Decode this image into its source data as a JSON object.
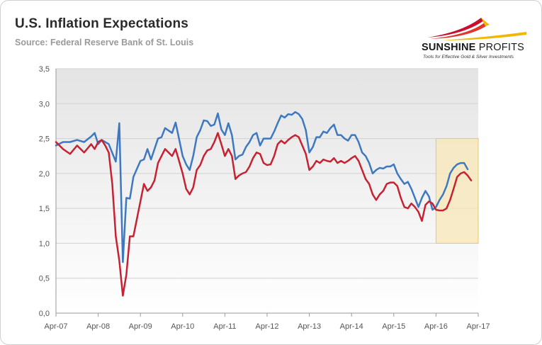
{
  "header": {
    "title": "U.S. Inflation Expectations",
    "subtitle": "Source: Federal Reserve Bank of St. Louis"
  },
  "logo": {
    "name_part1": "SUNSHINE",
    "name_part2": "PROFITS",
    "tagline": "Tools for Effective Gold & Silver Investments",
    "colors": [
      "#c8102e",
      "#f2b705"
    ]
  },
  "colors": {
    "blue_series": "#3d78c0",
    "red_series": "#c62232",
    "highlight_fill": "#f8e8b8",
    "highlight_stroke": "#f1c75a",
    "plot_background_top": "#e6e6e6",
    "plot_background_bottom": "#ffffff"
  },
  "chart_data": {
    "type": "line",
    "title": "U.S. Inflation Expectations",
    "subtitle": "Source: Federal Reserve Bank of St. Louis",
    "xlabel": "",
    "ylabel": "",
    "ylim": [
      0,
      3.5
    ],
    "yticks": [
      0,
      0.5,
      1.0,
      1.5,
      2.0,
      2.5,
      3.0,
      3.5
    ],
    "ytick_labels": [
      "0,0",
      "0,5",
      "1,0",
      "1,5",
      "2,0",
      "2,5",
      "3,0",
      "3,5"
    ],
    "xticks": [
      "Apr-07",
      "Apr-08",
      "Apr-09",
      "Apr-10",
      "Apr-11",
      "Apr-12",
      "Apr-13",
      "Apr-14",
      "Apr-15",
      "Apr-16",
      "Apr-17"
    ],
    "xrange": [
      "Apr-07",
      "Apr-17"
    ],
    "grid": true,
    "legend": "none",
    "highlight_box": {
      "x": [
        "Apr-16",
        "Apr-17"
      ],
      "y": [
        1.0,
        2.5
      ]
    },
    "series": [
      {
        "color": "#3d78c0",
        "points": [
          [
            "Apr-07",
            2.4
          ],
          [
            "Jun-07",
            2.45
          ],
          [
            "Aug-07",
            2.45
          ],
          [
            "Oct-07",
            2.48
          ],
          [
            "Dec-07",
            2.45
          ],
          [
            "Feb-08",
            2.53
          ],
          [
            "Mar-08",
            2.58
          ],
          [
            "Apr-08",
            2.42
          ],
          [
            "May-08",
            2.48
          ],
          [
            "Jul-08",
            2.42
          ],
          [
            "Sep-08",
            2.17
          ],
          [
            "Oct-08",
            2.72
          ],
          [
            "Nov-08",
            0.73
          ],
          [
            "Dec-08",
            1.65
          ],
          [
            "Jan-09",
            1.64
          ],
          [
            "Feb-09",
            1.95
          ],
          [
            "Apr-09",
            2.18
          ],
          [
            "May-09",
            2.2
          ],
          [
            "Jun-09",
            2.35
          ],
          [
            "Jul-09",
            2.2
          ],
          [
            "Aug-09",
            2.35
          ],
          [
            "Sep-09",
            2.5
          ],
          [
            "Oct-09",
            2.52
          ],
          [
            "Nov-09",
            2.65
          ],
          [
            "Jan-10",
            2.58
          ],
          [
            "Feb-10",
            2.73
          ],
          [
            "Apr-10",
            2.25
          ],
          [
            "May-10",
            2.13
          ],
          [
            "Jun-10",
            2.05
          ],
          [
            "Jul-10",
            2.25
          ],
          [
            "Aug-10",
            2.52
          ],
          [
            "Sep-10",
            2.62
          ],
          [
            "Oct-10",
            2.76
          ],
          [
            "Nov-10",
            2.75
          ],
          [
            "Dec-10",
            2.68
          ],
          [
            "Jan-11",
            2.7
          ],
          [
            "Feb-11",
            2.86
          ],
          [
            "Mar-11",
            2.63
          ],
          [
            "Apr-11",
            2.55
          ],
          [
            "May-11",
            2.72
          ],
          [
            "Jun-11",
            2.55
          ],
          [
            "Jul-11",
            2.2
          ],
          [
            "Aug-11",
            2.25
          ],
          [
            "Sep-11",
            2.27
          ],
          [
            "Oct-11",
            2.38
          ],
          [
            "Nov-11",
            2.45
          ],
          [
            "Dec-11",
            2.55
          ],
          [
            "Jan-12",
            2.58
          ],
          [
            "Feb-12",
            2.4
          ],
          [
            "Mar-12",
            2.5
          ],
          [
            "Apr-12",
            2.5
          ],
          [
            "May-12",
            2.5
          ],
          [
            "Jun-12",
            2.6
          ],
          [
            "Jul-12",
            2.72
          ],
          [
            "Aug-12",
            2.83
          ],
          [
            "Sep-12",
            2.8
          ],
          [
            "Oct-12",
            2.85
          ],
          [
            "Nov-12",
            2.84
          ],
          [
            "Dec-12",
            2.88
          ],
          [
            "Jan-13",
            2.85
          ],
          [
            "Feb-13",
            2.78
          ],
          [
            "Mar-13",
            2.62
          ],
          [
            "Apr-13",
            2.3
          ],
          [
            "May-13",
            2.38
          ],
          [
            "Jun-13",
            2.52
          ],
          [
            "Jul-13",
            2.52
          ],
          [
            "Aug-13",
            2.6
          ],
          [
            "Sep-13",
            2.58
          ],
          [
            "Oct-13",
            2.65
          ],
          [
            "Nov-13",
            2.7
          ],
          [
            "Dec-13",
            2.55
          ],
          [
            "Jan-14",
            2.55
          ],
          [
            "Feb-14",
            2.5
          ],
          [
            "Mar-14",
            2.47
          ],
          [
            "Apr-14",
            2.55
          ],
          [
            "May-14",
            2.55
          ],
          [
            "Jun-14",
            2.45
          ],
          [
            "Jul-14",
            2.3
          ],
          [
            "Aug-14",
            2.25
          ],
          [
            "Sep-14",
            2.15
          ],
          [
            "Oct-14",
            2.0
          ],
          [
            "Nov-14",
            2.05
          ],
          [
            "Dec-14",
            2.08
          ],
          [
            "Jan-15",
            2.07
          ],
          [
            "Feb-15",
            2.1
          ],
          [
            "Mar-15",
            2.1
          ],
          [
            "Apr-15",
            2.13
          ],
          [
            "May-15",
            2.0
          ],
          [
            "Jun-15",
            1.92
          ],
          [
            "Jul-15",
            1.85
          ],
          [
            "Aug-15",
            1.88
          ],
          [
            "Sep-15",
            1.78
          ],
          [
            "Oct-15",
            1.65
          ],
          [
            "Nov-15",
            1.52
          ],
          [
            "Dec-15",
            1.65
          ],
          [
            "Jan-16",
            1.75
          ],
          [
            "Feb-16",
            1.67
          ],
          [
            "Mar-16",
            1.48
          ],
          [
            "Apr-16",
            1.52
          ],
          [
            "May-16",
            1.62
          ],
          [
            "Jun-16",
            1.7
          ],
          [
            "Jul-16",
            1.82
          ],
          [
            "Aug-16",
            2.0
          ],
          [
            "Sep-16",
            2.08
          ],
          [
            "Oct-16",
            2.13
          ],
          [
            "Nov-16",
            2.15
          ],
          [
            "Dec-16",
            2.15
          ],
          [
            "Jan-17",
            2.06
          ]
        ]
      },
      {
        "color": "#c62232",
        "points": [
          [
            "Apr-07",
            2.45
          ],
          [
            "Jun-07",
            2.35
          ],
          [
            "Aug-07",
            2.28
          ],
          [
            "Oct-07",
            2.4
          ],
          [
            "Dec-07",
            2.3
          ],
          [
            "Feb-08",
            2.42
          ],
          [
            "Mar-08",
            2.35
          ],
          [
            "Apr-08",
            2.45
          ],
          [
            "May-08",
            2.48
          ],
          [
            "Jun-08",
            2.4
          ],
          [
            "Jul-08",
            2.3
          ],
          [
            "Aug-08",
            1.85
          ],
          [
            "Sep-08",
            1.1
          ],
          [
            "Oct-08",
            0.75
          ],
          [
            "Nov-08",
            0.25
          ],
          [
            "Dec-08",
            0.55
          ],
          [
            "Jan-09",
            1.1
          ],
          [
            "Feb-09",
            1.1
          ],
          [
            "Apr-09",
            1.6
          ],
          [
            "May-09",
            1.85
          ],
          [
            "Jun-09",
            1.75
          ],
          [
            "Jul-09",
            1.8
          ],
          [
            "Aug-09",
            1.9
          ],
          [
            "Sep-09",
            2.15
          ],
          [
            "Oct-09",
            2.25
          ],
          [
            "Nov-09",
            2.35
          ],
          [
            "Jan-10",
            2.25
          ],
          [
            "Feb-10",
            2.35
          ],
          [
            "Apr-10",
            2.0
          ],
          [
            "May-10",
            1.78
          ],
          [
            "Jun-10",
            1.7
          ],
          [
            "Jul-10",
            1.8
          ],
          [
            "Aug-10",
            2.05
          ],
          [
            "Sep-10",
            2.12
          ],
          [
            "Oct-10",
            2.25
          ],
          [
            "Nov-10",
            2.33
          ],
          [
            "Dec-10",
            2.35
          ],
          [
            "Jan-11",
            2.45
          ],
          [
            "Feb-11",
            2.58
          ],
          [
            "Mar-11",
            2.42
          ],
          [
            "Apr-11",
            2.25
          ],
          [
            "May-11",
            2.35
          ],
          [
            "Jun-11",
            2.25
          ],
          [
            "Jul-11",
            1.92
          ],
          [
            "Aug-11",
            1.97
          ],
          [
            "Sep-11",
            2.0
          ],
          [
            "Oct-11",
            2.02
          ],
          [
            "Nov-11",
            2.1
          ],
          [
            "Dec-11",
            2.22
          ],
          [
            "Jan-12",
            2.3
          ],
          [
            "Feb-12",
            2.28
          ],
          [
            "Mar-12",
            2.15
          ],
          [
            "Apr-12",
            2.12
          ],
          [
            "May-12",
            2.13
          ],
          [
            "Jun-12",
            2.25
          ],
          [
            "Jul-12",
            2.42
          ],
          [
            "Aug-12",
            2.47
          ],
          [
            "Sep-12",
            2.43
          ],
          [
            "Oct-12",
            2.48
          ],
          [
            "Nov-12",
            2.52
          ],
          [
            "Dec-12",
            2.55
          ],
          [
            "Jan-13",
            2.52
          ],
          [
            "Feb-13",
            2.4
          ],
          [
            "Mar-13",
            2.28
          ],
          [
            "Apr-13",
            2.05
          ],
          [
            "May-13",
            2.1
          ],
          [
            "Jun-13",
            2.18
          ],
          [
            "Jul-13",
            2.15
          ],
          [
            "Aug-13",
            2.2
          ],
          [
            "Sep-13",
            2.18
          ],
          [
            "Oct-13",
            2.17
          ],
          [
            "Nov-13",
            2.22
          ],
          [
            "Dec-13",
            2.15
          ],
          [
            "Jan-14",
            2.18
          ],
          [
            "Feb-14",
            2.15
          ],
          [
            "Mar-14",
            2.18
          ],
          [
            "Apr-14",
            2.22
          ],
          [
            "May-14",
            2.25
          ],
          [
            "Jun-14",
            2.18
          ],
          [
            "Jul-14",
            2.05
          ],
          [
            "Aug-14",
            1.92
          ],
          [
            "Sep-14",
            1.85
          ],
          [
            "Oct-14",
            1.7
          ],
          [
            "Nov-14",
            1.62
          ],
          [
            "Dec-14",
            1.7
          ],
          [
            "Jan-15",
            1.75
          ],
          [
            "Feb-15",
            1.85
          ],
          [
            "Mar-15",
            1.87
          ],
          [
            "Apr-15",
            1.87
          ],
          [
            "May-15",
            1.82
          ],
          [
            "Jun-15",
            1.65
          ],
          [
            "Jul-15",
            1.52
          ],
          [
            "Aug-15",
            1.5
          ],
          [
            "Sep-15",
            1.57
          ],
          [
            "Oct-15",
            1.52
          ],
          [
            "Nov-15",
            1.45
          ],
          [
            "Dec-15",
            1.32
          ],
          [
            "Jan-16",
            1.55
          ],
          [
            "Feb-16",
            1.6
          ],
          [
            "Mar-16",
            1.57
          ],
          [
            "Apr-16",
            1.48
          ],
          [
            "May-16",
            1.47
          ],
          [
            "Jun-16",
            1.47
          ],
          [
            "Jul-16",
            1.5
          ],
          [
            "Aug-16",
            1.62
          ],
          [
            "Sep-16",
            1.78
          ],
          [
            "Oct-16",
            1.95
          ],
          [
            "Nov-16",
            2.0
          ],
          [
            "Dec-16",
            2.02
          ],
          [
            "Jan-17",
            1.97
          ],
          [
            "Feb-17",
            1.9
          ]
        ]
      }
    ]
  }
}
